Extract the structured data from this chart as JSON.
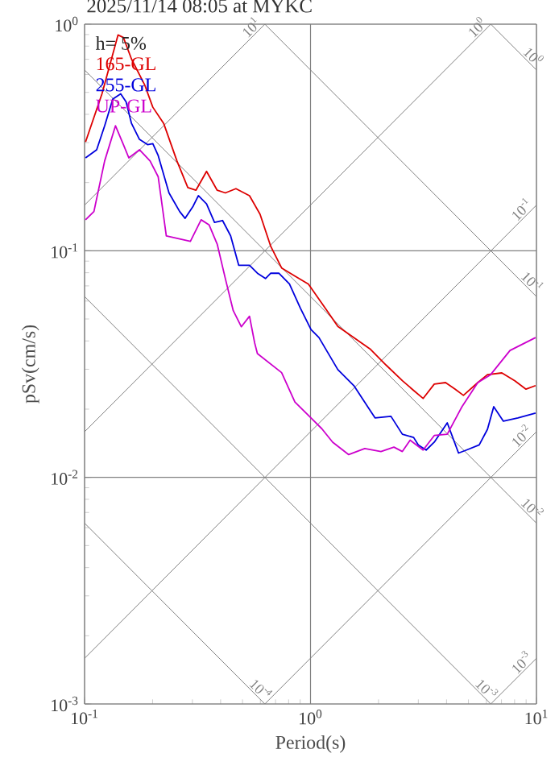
{
  "chart_data": {
    "type": "line",
    "title": "2025/11/14 08:05 at MYKC",
    "xlabel": "Period(s)",
    "ylabel": "pSv(cm/s)",
    "log": "xy",
    "grid": true,
    "legend": "top left",
    "annotations": [
      "h= 5%"
    ],
    "xlim": [
      0.1,
      10
    ],
    "ylim": [
      0.001,
      1
    ],
    "xticks": [
      {
        "value": 0.1,
        "label": "10$^{-1}$"
      },
      {
        "value": 1,
        "label": "10$^{0}$"
      },
      {
        "value": 10,
        "label": "10$^{1}$"
      }
    ],
    "yticks": [
      {
        "value": 0.001,
        "label": "10$^{-3}$"
      },
      {
        "value": 0.01,
        "label": "10$^{-2}$"
      },
      {
        "value": 0.1,
        "label": "10$^{-1}$"
      },
      {
        "value": 1,
        "label": "10$^{0}$"
      }
    ],
    "series": [
      {
        "name": "10$^{1}$",
        "color": "#808080",
        "x": [
          0.1,
          0.628
        ],
        "values": [
          0.159,
          1
        ]
      },
      {
        "name": "10$^{0}$",
        "color": "#808080",
        "x": [
          0.1,
          6.28
        ],
        "values": [
          0.0159,
          1
        ]
      },
      {
        "name": "10$^{-1}$",
        "color": "#808080",
        "x": [
          0.1,
          10
        ],
        "values": [
          0.00159,
          0.159
        ]
      },
      {
        "name": "10$^{-2}$",
        "color": "#808080",
        "x": [
          0.628,
          10
        ],
        "values": [
          0.001,
          0.0159
        ]
      },
      {
        "name": "10$^{-3}$",
        "color": "#808080",
        "x": [
          6.28,
          10
        ],
        "values": [
          0.001,
          0.00159
        ]
      },
      {
        "name": "10$^{0}$",
        "color": "#808080",
        "x": [
          6.28,
          10
        ],
        "values": [
          1,
          0.628
        ]
      },
      {
        "name": "10$^{-1}$",
        "color": "#808080",
        "x": [
          0.628,
          10
        ],
        "values": [
          1,
          0.0628
        ]
      },
      {
        "name": "10$^{-2}$",
        "color": "#808080",
        "x": [
          0.1,
          10
        ],
        "values": [
          0.628,
          0.00628
        ]
      },
      {
        "name": "10$^{-3}$",
        "color": "#808080",
        "x": [
          0.1,
          6.28
        ],
        "values": [
          0.0628,
          0.001
        ]
      },
      {
        "name": "10$^{-4}$",
        "color": "#808080",
        "x": [
          0.1,
          0.628
        ],
        "values": [
          0.00628,
          0.001
        ]
      },
      {
        "name": "165-GL",
        "color": "#dd0000",
        "x": [
          0.101,
          0.1194,
          0.1406,
          0.1486,
          0.1613,
          0.1849,
          0.2005,
          0.2239,
          0.2564,
          0.2864,
          0.311,
          0.3467,
          0.3864,
          0.4198,
          0.4677,
          0.537,
          0.598,
          0.667,
          0.745,
          0.853,
          0.979,
          1.178,
          1.321,
          1.834,
          2.16,
          2.55,
          2.86,
          3.15,
          3.53,
          3.96,
          4.37,
          4.75,
          5.5,
          6.07,
          7.03,
          8.02,
          8.99,
          9.91
        ],
        "values": [
          0.302,
          0.493,
          0.896,
          0.873,
          0.702,
          0.537,
          0.43,
          0.365,
          0.249,
          0.19,
          0.185,
          0.224,
          0.185,
          0.18,
          0.188,
          0.175,
          0.145,
          0.1045,
          0.084,
          0.0774,
          0.0713,
          0.0547,
          0.0464,
          0.0369,
          0.0313,
          0.0267,
          0.0242,
          0.0223,
          0.0258,
          0.0262,
          0.0245,
          0.023,
          0.0262,
          0.0284,
          0.0289,
          0.0267,
          0.0245,
          0.0254
        ]
      },
      {
        "name": "255-GL",
        "color": "#0000dd",
        "x": [
          0.101,
          0.1131,
          0.1227,
          0.1333,
          0.1445,
          0.1527,
          0.1613,
          0.175,
          0.19,
          0.2005,
          0.2118,
          0.2364,
          0.2636,
          0.2786,
          0.302,
          0.319,
          0.3467,
          0.376,
          0.408,
          0.443,
          0.481,
          0.537,
          0.582,
          0.632,
          0.667,
          0.724,
          0.807,
          0.902,
          1.005,
          1.09,
          1.321,
          1.556,
          1.93,
          2.27,
          2.55,
          2.86,
          3.0,
          3.25,
          3.53,
          4.03,
          4.52,
          4.9,
          5.58,
          6.07,
          6.47,
          7.14,
          8.28,
          9.91
        ],
        "values": [
          0.257,
          0.279,
          0.356,
          0.467,
          0.493,
          0.454,
          0.365,
          0.31,
          0.294,
          0.297,
          0.263,
          0.18,
          0.149,
          0.139,
          0.157,
          0.175,
          0.161,
          0.1335,
          0.136,
          0.1164,
          0.0863,
          0.0863,
          0.0796,
          0.0754,
          0.0796,
          0.0796,
          0.0713,
          0.0558,
          0.0449,
          0.0414,
          0.0299,
          0.0254,
          0.0183,
          0.0186,
          0.0155,
          0.015,
          0.0139,
          0.0132,
          0.0143,
          0.0174,
          0.0128,
          0.0132,
          0.0139,
          0.0163,
          0.0205,
          0.0177,
          0.0183,
          0.0192
        ]
      },
      {
        "name": "UP-GL",
        "color": "#cc00cc",
        "x": [
          0.101,
          0.11,
          0.1227,
          0.137,
          0.1486,
          0.157,
          0.175,
          0.195,
          0.2118,
          0.23,
          0.2564,
          0.294,
          0.328,
          0.356,
          0.3864,
          0.4198,
          0.455,
          0.494,
          0.537,
          0.566,
          0.582,
          0.745,
          0.853,
          1.005,
          1.122,
          1.253,
          1.476,
          1.738,
          2.05,
          2.34,
          2.55,
          2.76,
          3.15,
          3.53,
          4.03,
          4.68,
          5.5,
          6.27,
          7.64,
          9.91
        ],
        "values": [
          0.137,
          0.149,
          0.249,
          0.356,
          0.294,
          0.257,
          0.279,
          0.249,
          0.212,
          0.1164,
          0.1135,
          0.11,
          0.137,
          0.13,
          0.107,
          0.0754,
          0.0544,
          0.0462,
          0.0514,
          0.0392,
          0.0352,
          0.029,
          0.0215,
          0.0183,
          0.0164,
          0.0143,
          0.0126,
          0.0134,
          0.013,
          0.0136,
          0.013,
          0.0146,
          0.0132,
          0.0153,
          0.0155,
          0.0205,
          0.0262,
          0.0284,
          0.0363,
          0.0414
        ]
      }
    ]
  }
}
